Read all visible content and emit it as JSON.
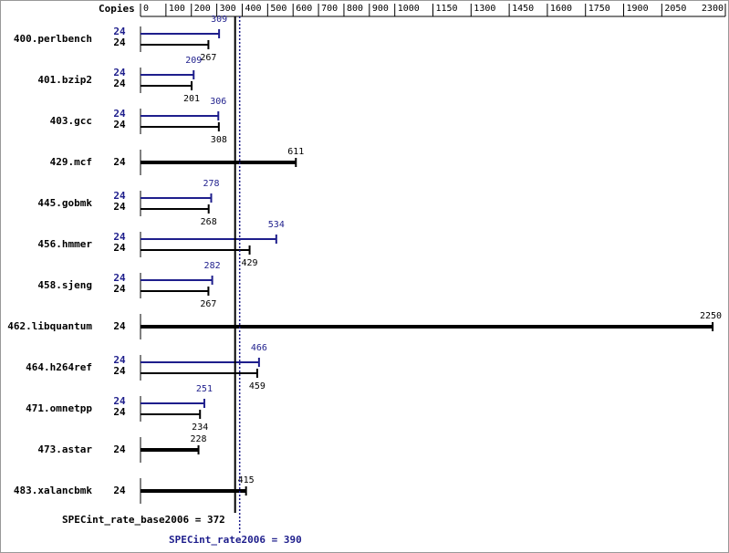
{
  "chart_data": {
    "type": "bar",
    "orientation": "horizontal",
    "copies_label": "Copies",
    "categories": [
      "400.perlbench",
      "401.bzip2",
      "403.gcc",
      "429.mcf",
      "445.gobmk",
      "456.hmmer",
      "458.sjeng",
      "462.libquantum",
      "464.h264ref",
      "471.omnetpp",
      "473.astar",
      "483.xalancbmk"
    ],
    "series": [
      {
        "color": "#1e1e8c",
        "values": [
          309,
          209,
          306,
          null,
          278,
          534,
          282,
          null,
          466,
          251,
          null,
          null
        ],
        "copies": [
          24,
          24,
          24,
          null,
          24,
          24,
          24,
          null,
          24,
          24,
          null,
          null
        ]
      },
      {
        "color": "#000000",
        "values": [
          267,
          201,
          308,
          611,
          268,
          429,
          267,
          2250,
          459,
          234,
          228,
          415
        ],
        "copies": [
          24,
          24,
          24,
          24,
          24,
          24,
          24,
          24,
          24,
          24,
          24,
          24
        ]
      }
    ],
    "xlim": [
      0,
      2300
    ],
    "xticks": [
      0,
      100,
      200,
      300,
      400,
      500,
      600,
      700,
      800,
      900,
      1000,
      1150,
      1300,
      1450,
      1600,
      1750,
      1900,
      2050,
      2300
    ],
    "means": [
      {
        "label": "SPECint_rate_base2006 = 372",
        "value": 372,
        "color": "#000000"
      },
      {
        "label": "SPECint_rate2006 = 390",
        "value": 390,
        "color": "#1e1e8c"
      }
    ]
  }
}
